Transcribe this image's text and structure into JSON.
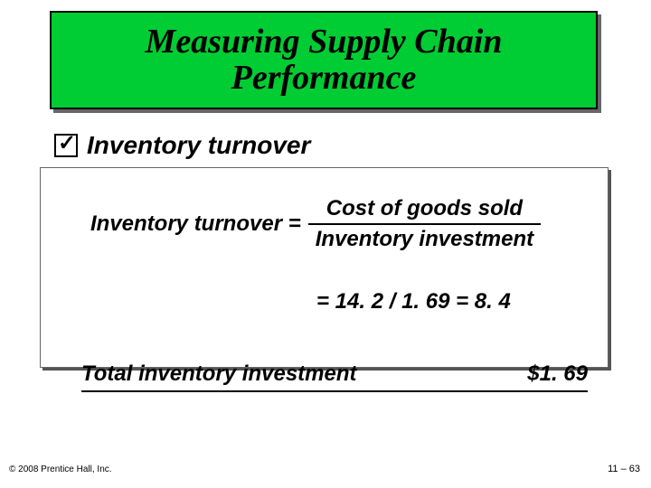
{
  "title": "Measuring Supply Chain Performance",
  "bullet": {
    "label": "Inventory turnover"
  },
  "formula": {
    "lhs": "Inventory turnover =",
    "numerator": "Cost of goods sold",
    "denominator": "Inventory investment",
    "calculation": "= 14. 2 / 1. 69 = 8. 4"
  },
  "total": {
    "label": "Total inventory investment",
    "value": "$1. 69"
  },
  "footer": {
    "copyright": "© 2008 Prentice Hall, Inc.",
    "pagenum": "11 – 63"
  },
  "colors": {
    "title_bg": "#00cc33",
    "title_border": "#000000",
    "shadow": "#666666",
    "text": "#000000",
    "page_bg": "#ffffff"
  },
  "fonts": {
    "title_family": "Times New Roman, serif",
    "body_family": "Arial, sans-serif",
    "title_size_pt": 38,
    "bullet_size_pt": 28,
    "formula_size_pt": 24,
    "footer_size_pt": 10
  }
}
